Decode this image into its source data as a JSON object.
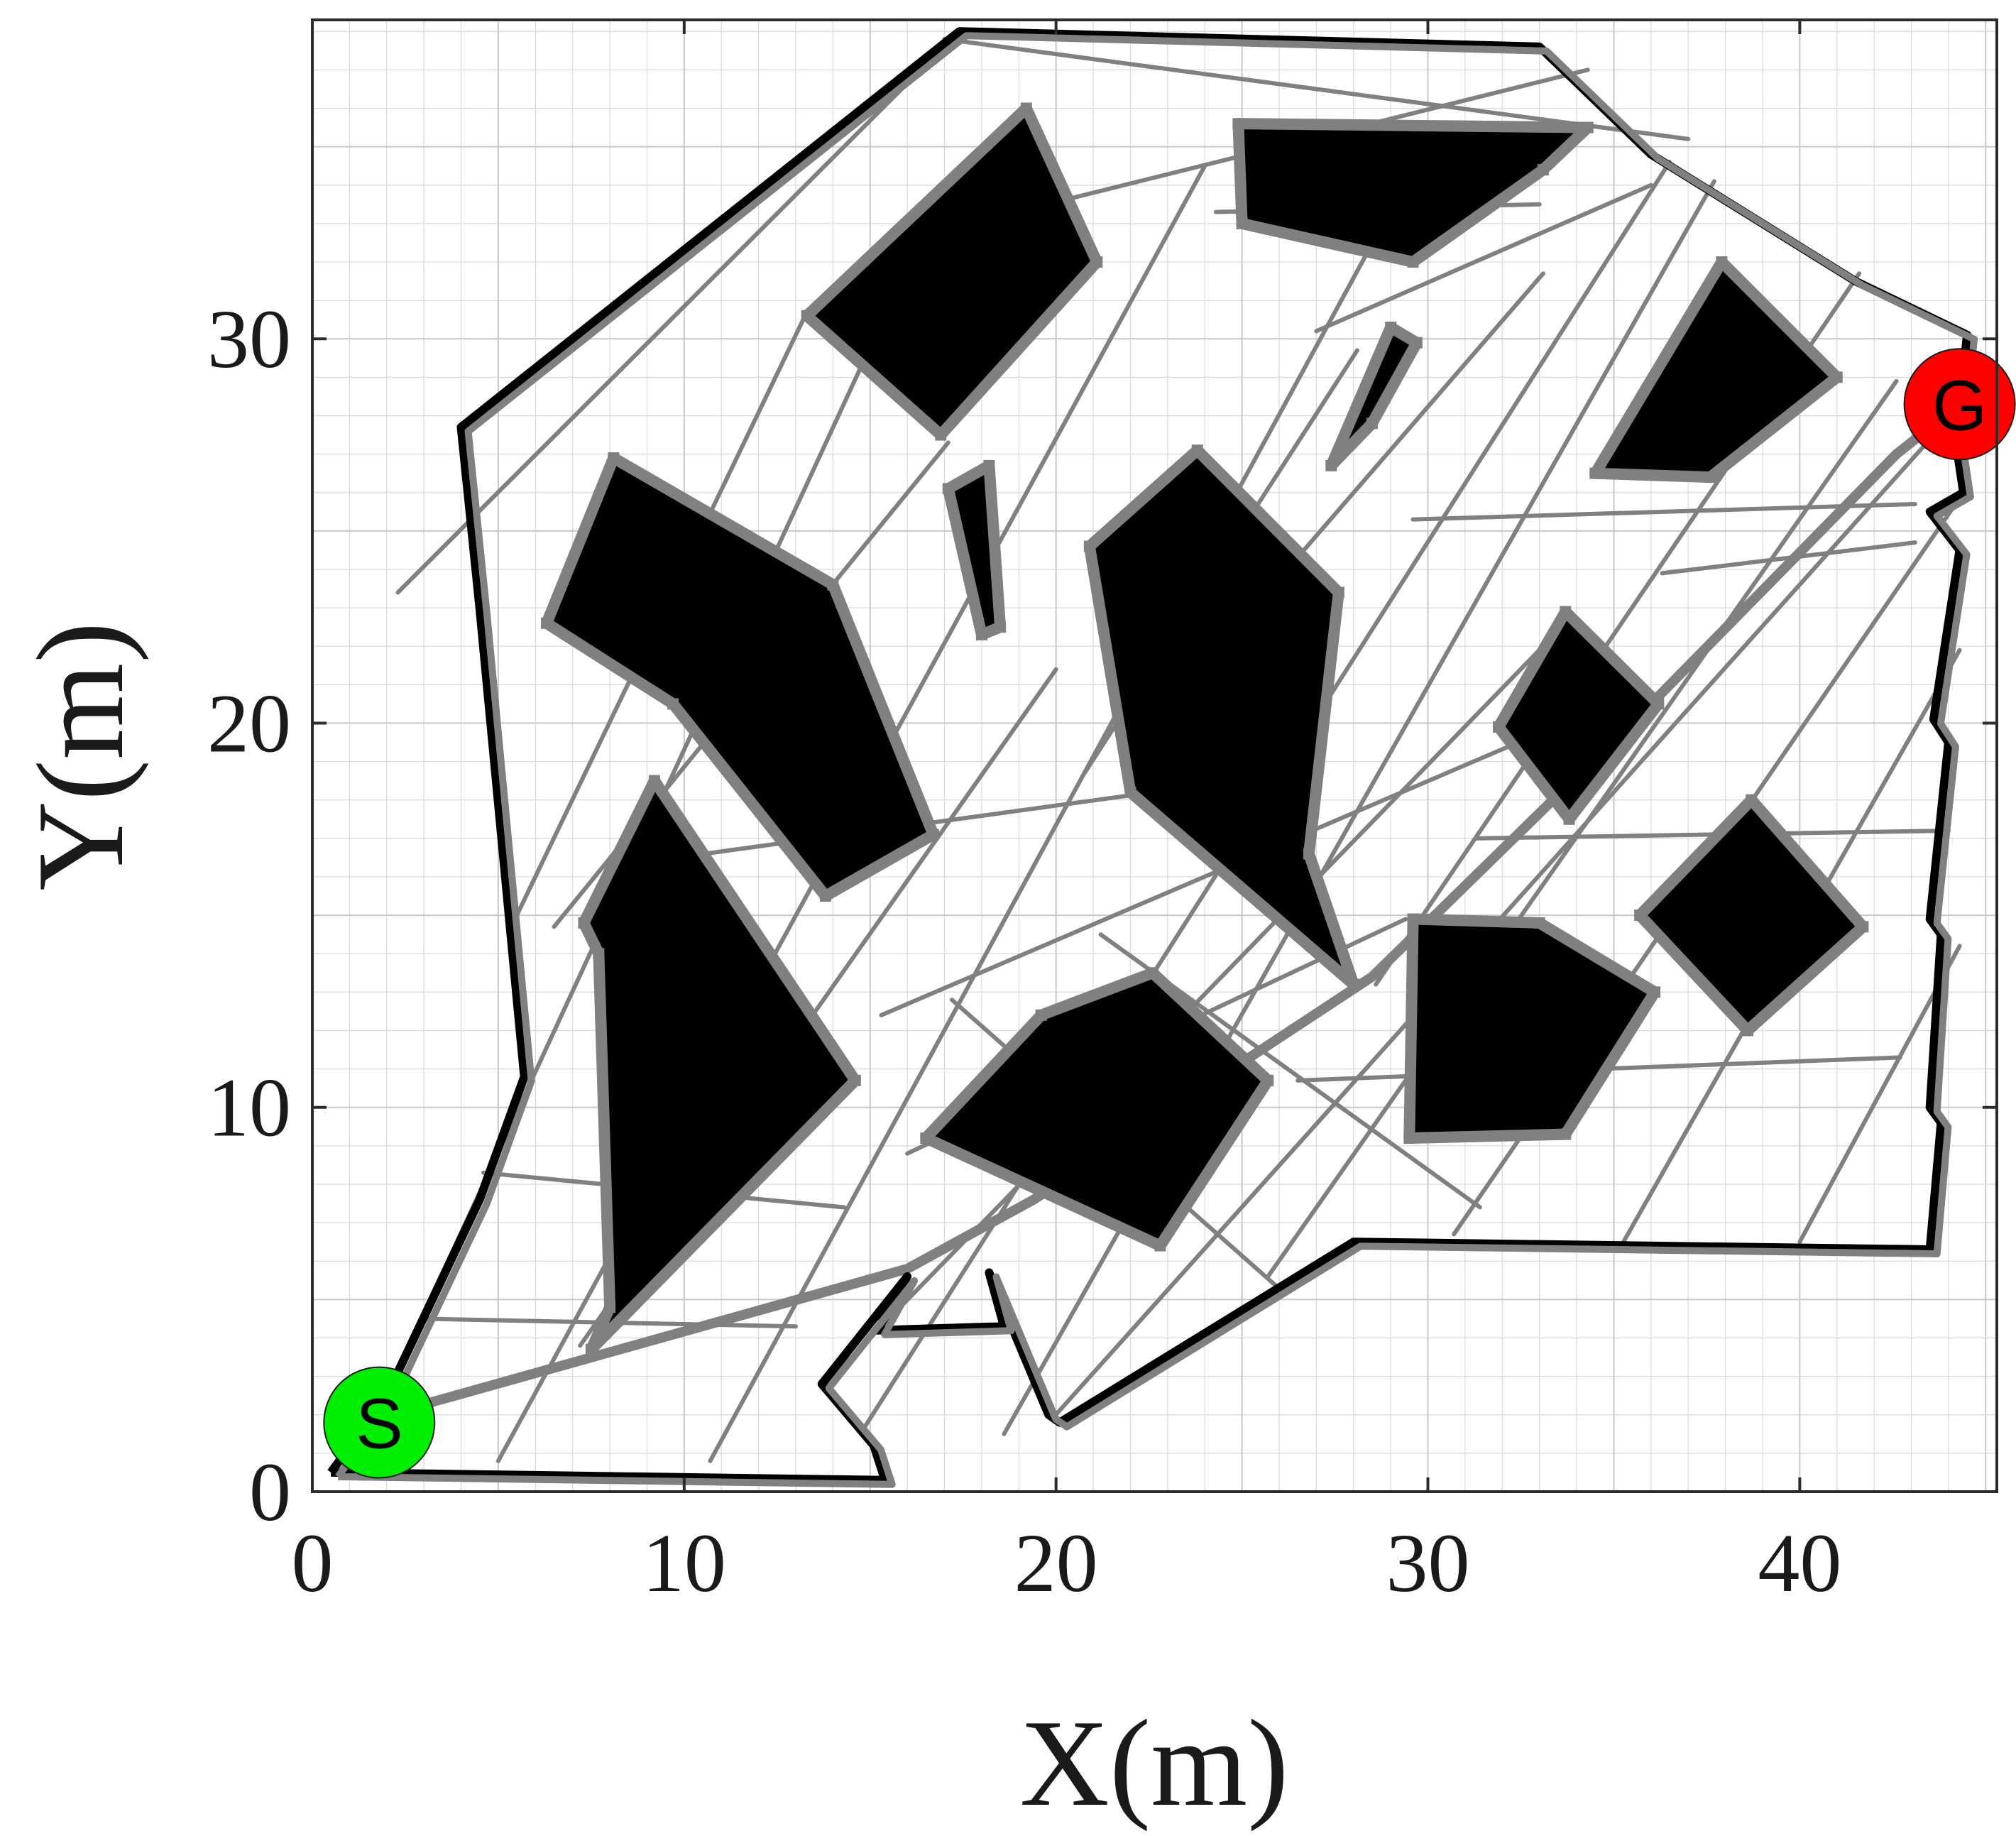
{
  "chart_data": {
    "type": "map",
    "xlabel": "X(m)",
    "ylabel": "Y(m)",
    "xlim": [
      0,
      45.3
    ],
    "ylim": [
      0,
      38.3
    ],
    "xticks": [
      0,
      10,
      20,
      30,
      40
    ],
    "yticks": [
      0,
      10,
      20,
      30
    ],
    "xtick_labels": [
      "0",
      "10",
      "20",
      "30",
      "40"
    ],
    "ytick_labels": [
      "0",
      "10",
      "20",
      "30"
    ],
    "grid": true,
    "colors": {
      "obstacle": "#000000",
      "roadmap": "#808080",
      "boundary": "#000000",
      "start": "#00ee00",
      "goal": "#ff0000"
    },
    "start": {
      "label": "S",
      "x": 1.8,
      "y": 1.8
    },
    "goal": {
      "label": "G",
      "x": 44.3,
      "y": 28.3
    },
    "boundary": [
      [
        0.5,
        0.5
      ],
      [
        15.4,
        0.3
      ],
      [
        15.1,
        1.2
      ],
      [
        13.7,
        2.8
      ],
      [
        16.0,
        5.6
      ],
      [
        15.2,
        4.2
      ],
      [
        18.6,
        4.3
      ],
      [
        18.2,
        5.7
      ],
      [
        19.8,
        2.0
      ],
      [
        20.1,
        1.8
      ],
      [
        28.0,
        6.5
      ],
      [
        43.5,
        6.3
      ],
      [
        43.8,
        9.6
      ],
      [
        43.5,
        10.0
      ],
      [
        43.8,
        14.5
      ],
      [
        43.5,
        14.9
      ],
      [
        44.0,
        19.5
      ],
      [
        43.6,
        20.1
      ],
      [
        44.3,
        24.5
      ],
      [
        43.5,
        25.5
      ],
      [
        44.4,
        26.0
      ],
      [
        44.2,
        27.3
      ],
      [
        44.5,
        30.1
      ],
      [
        41.5,
        31.5
      ],
      [
        36.0,
        34.8
      ],
      [
        33.0,
        37.6
      ],
      [
        17.4,
        38.0
      ],
      [
        4.0,
        27.7
      ],
      [
        4.5,
        23.0
      ],
      [
        5.7,
        10.8
      ],
      [
        4.5,
        7.6
      ],
      [
        2.0,
        2.5
      ],
      [
        0.5,
        0.5
      ]
    ],
    "obstacles": [
      [
        [
          7.5,
          3.7
        ],
        [
          8.0,
          4.8
        ],
        [
          7.7,
          14.0
        ],
        [
          7.3,
          14.8
        ],
        [
          9.2,
          18.5
        ],
        [
          14.6,
          10.7
        ]
      ],
      [
        [
          6.3,
          22.6
        ],
        [
          8.1,
          26.9
        ],
        [
          14.0,
          23.6
        ],
        [
          16.7,
          17.1
        ],
        [
          13.8,
          15.5
        ],
        [
          9.7,
          20.5
        ]
      ],
      [
        [
          13.3,
          30.6
        ],
        [
          16.9,
          27.5
        ],
        [
          21.1,
          32.0
        ],
        [
          19.2,
          36.0
        ]
      ],
      [
        [
          17.1,
          26.1
        ],
        [
          18.2,
          26.7
        ],
        [
          18.5,
          22.5
        ],
        [
          18.0,
          22.3
        ]
      ],
      [
        [
          16.5,
          9.2
        ],
        [
          19.6,
          12.4
        ],
        [
          22.6,
          13.5
        ],
        [
          25.7,
          10.7
        ],
        [
          22.8,
          6.4
        ]
      ],
      [
        [
          20.9,
          24.6
        ],
        [
          23.8,
          27.1
        ],
        [
          27.6,
          23.4
        ],
        [
          26.8,
          16.6
        ],
        [
          28.0,
          13.2
        ],
        [
          22.0,
          18.2
        ]
      ],
      [
        [
          24.9,
          35.6
        ],
        [
          34.3,
          35.5
        ],
        [
          33.1,
          34.4
        ],
        [
          29.6,
          32.0
        ],
        [
          25.0,
          33.0
        ]
      ],
      [
        [
          27.4,
          26.7
        ],
        [
          28.5,
          27.8
        ],
        [
          29.7,
          29.9
        ],
        [
          29.0,
          30.3
        ]
      ],
      [
        [
          29.6,
          14.9
        ],
        [
          29.5,
          9.2
        ],
        [
          33.7,
          9.3
        ],
        [
          36.1,
          13.0
        ],
        [
          33.0,
          14.8
        ]
      ],
      [
        [
          31.9,
          19.9
        ],
        [
          33.7,
          22.9
        ],
        [
          36.2,
          20.5
        ],
        [
          33.8,
          17.5
        ]
      ],
      [
        [
          35.7,
          15.0
        ],
        [
          38.6,
          12.0
        ],
        [
          41.7,
          14.7
        ],
        [
          38.7,
          18.0
        ]
      ],
      [
        [
          34.5,
          26.5
        ],
        [
          37.6,
          26.4
        ],
        [
          41.0,
          29.0
        ],
        [
          37.9,
          32.0
        ]
      ]
    ],
    "roadmap_edges": [
      [
        [
          1.5,
          1.5
        ],
        [
          16.2,
          32.3
        ]
      ],
      [
        [
          5.0,
          0.8
        ],
        [
          24.0,
          34.5
        ]
      ],
      [
        [
          10.7,
          0.8
        ],
        [
          30.2,
          35.5
        ]
      ],
      [
        [
          13.8,
          2.8
        ],
        [
          33.5,
          22.4
        ]
      ],
      [
        [
          14.8,
          1.6
        ],
        [
          36.5,
          34.6
        ]
      ],
      [
        [
          18.6,
          1.5
        ],
        [
          37.7,
          34.1
        ]
      ],
      [
        [
          19.9,
          1.9
        ],
        [
          43.7,
          27.6
        ]
      ],
      [
        [
          30.7,
          6.7
        ],
        [
          44.4,
          26.0
        ]
      ],
      [
        [
          35.2,
          6.4
        ],
        [
          44.3,
          21.9
        ]
      ],
      [
        [
          40.0,
          6.5
        ],
        [
          44.3,
          14.2
        ]
      ],
      [
        [
          7.2,
          3.8
        ],
        [
          20.0,
          21.4
        ]
      ],
      [
        [
          6.5,
          14.7
        ],
        [
          17.1,
          27.3
        ]
      ],
      [
        [
          2.3,
          23.4
        ],
        [
          17.4,
          38.0
        ]
      ],
      [
        [
          5.5,
          15.0
        ],
        [
          13.2,
          30.5
        ]
      ],
      [
        [
          17.0,
          37.8
        ],
        [
          37.0,
          35.2
        ]
      ],
      [
        [
          18.5,
          33.2
        ],
        [
          34.3,
          37.0
        ]
      ],
      [
        [
          24.3,
          33.3
        ],
        [
          33.0,
          33.5
        ]
      ],
      [
        [
          27.0,
          30.2
        ],
        [
          36.0,
          34.0
        ]
      ],
      [
        [
          20.7,
          18.6
        ],
        [
          28.1,
          29.7
        ]
      ],
      [
        [
          23.0,
          20.4
        ],
        [
          33.1,
          31.7
        ]
      ],
      [
        [
          25.7,
          5.6
        ],
        [
          42.6,
          28.9
        ]
      ],
      [
        [
          28.6,
          13.2
        ],
        [
          41.6,
          31.7
        ]
      ],
      [
        [
          16.0,
          8.8
        ],
        [
          29.4,
          14.9
        ]
      ],
      [
        [
          4.6,
          8.3
        ],
        [
          14.3,
          7.4
        ]
      ],
      [
        [
          3.0,
          4.5
        ],
        [
          13.0,
          4.3
        ]
      ],
      [
        [
          9.8,
          16.5
        ],
        [
          22.6,
          18.2
        ]
      ],
      [
        [
          15.3,
          12.4
        ],
        [
          33.4,
          19.9
        ]
      ],
      [
        [
          21.2,
          14.5
        ],
        [
          31.4,
          7.4
        ]
      ],
      [
        [
          17.2,
          12.8
        ],
        [
          26.1,
          5.2
        ]
      ],
      [
        [
          26.5,
          10.7
        ],
        [
          42.7,
          11.3
        ]
      ],
      [
        [
          31.3,
          17.0
        ],
        [
          44.0,
          17.2
        ]
      ],
      [
        [
          29.6,
          25.3
        ],
        [
          43.1,
          25.7
        ]
      ],
      [
        [
          36.3,
          23.9
        ],
        [
          43.1,
          24.7
        ]
      ]
    ],
    "path_segments": [
      [
        [
          2.0,
          2.0
        ],
        [
          16.0,
          5.8
        ]
      ],
      [
        [
          16.0,
          5.8
        ],
        [
          19.4,
          7.6
        ]
      ],
      [
        [
          19.4,
          7.6
        ],
        [
          28.5,
          13.4
        ]
      ],
      [
        [
          28.5,
          13.4
        ],
        [
          35.9,
          20.4
        ]
      ],
      [
        [
          35.9,
          20.4
        ],
        [
          42.6,
          27.0
        ]
      ],
      [
        [
          42.6,
          27.0
        ],
        [
          44.3,
          28.3
        ]
      ]
    ]
  }
}
